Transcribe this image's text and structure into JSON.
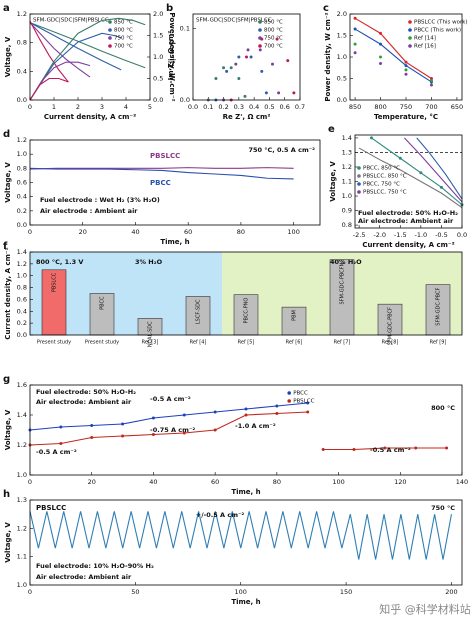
{
  "chart_data": [
    {
      "label": "a",
      "type": "line",
      "title": "SFM-GDC|SDC|SFM|PBSLCC",
      "x_label": "Current density, A cm⁻²",
      "y_label": "Voltage, V",
      "y2_label": "Power density, W cm⁻²",
      "xlim": [
        0,
        5
      ],
      "xticks": [
        0,
        1,
        2,
        3,
        4,
        5
      ],
      "ylim": [
        0,
        1.2
      ],
      "yticks": [
        {
          "value": 0,
          "label": "0.0"
        },
        {
          "value": 0.4,
          "label": "0.4"
        },
        {
          "value": 0.8,
          "label": "0.8"
        },
        {
          "value": 1.2,
          "label": "1.2"
        }
      ],
      "y2lim": [
        0,
        2
      ],
      "y2ticks": [
        {
          "value": 0,
          "label": "0.0"
        },
        {
          "value": 0.5,
          "label": "0.5"
        },
        {
          "value": 1,
          "label": "1.0"
        },
        {
          "value": 1.5,
          "label": "1.5"
        },
        {
          "value": 2,
          "label": "2.0"
        }
      ],
      "legend": "upper right",
      "series": [
        {
          "name": "850 °C",
          "color": "#3a7d6a",
          "x": [
            0,
            1,
            2,
            3,
            4,
            4.8
          ],
          "values": [
            1.08,
            0.95,
            0.82,
            0.68,
            0.55,
            0.45
          ]
        },
        {
          "name": "800 °C",
          "color": "#2f5fa8",
          "x": [
            0,
            1,
            2,
            3,
            3.8
          ],
          "values": [
            1.08,
            0.9,
            0.72,
            0.55,
            0.42
          ]
        },
        {
          "name": "750 °C",
          "color": "#7b3fa0",
          "x": [
            0,
            0.5,
            1,
            1.5,
            2,
            2.5
          ],
          "values": [
            1.08,
            0.9,
            0.72,
            0.57,
            0.44,
            0.32
          ]
        },
        {
          "name": "700 °C",
          "color": "#c2185b",
          "x": [
            0,
            0.4,
            0.8,
            1.2,
            1.6
          ],
          "values": [
            1.1,
            0.85,
            0.62,
            0.42,
            0.25
          ]
        },
        {
          "color": "#3a7d6a",
          "axis": "y2",
          "x": [
            0,
            1,
            2,
            3,
            3.7,
            4.3,
            4.8
          ],
          "values": [
            0,
            0.9,
            1.55,
            1.85,
            1.9,
            1.85,
            1.75
          ]
        },
        {
          "color": "#2f5fa8",
          "axis": "y2",
          "x": [
            0,
            1,
            2,
            3,
            3.5,
            3.8
          ],
          "values": [
            0,
            0.85,
            1.35,
            1.55,
            1.5,
            1.45
          ]
        },
        {
          "color": "#7b3fa0",
          "axis": "y2",
          "x": [
            0,
            0.5,
            1,
            1.5,
            2,
            2.5
          ],
          "values": [
            0,
            0.45,
            0.75,
            0.88,
            0.88,
            0.8
          ]
        },
        {
          "color": "#c2185b",
          "axis": "y2",
          "x": [
            0,
            0.4,
            0.8,
            1.2,
            1.6
          ],
          "values": [
            0,
            0.35,
            0.5,
            0.5,
            0.42
          ]
        }
      ]
    },
    {
      "label": "b",
      "type": "scatter",
      "title": "SFM-GDC|SDC|SFM|PBSLCC",
      "x_label": "Re Z', Ω cm²",
      "y_label": "-Im Z'', Ω cm²",
      "xlim": [
        0,
        0.7
      ],
      "xticks": [
        {
          "value": 0,
          "label": "0.0"
        },
        {
          "value": 0.1,
          "label": "0.1"
        },
        {
          "value": 0.2,
          "label": "0.2"
        },
        {
          "value": 0.3,
          "label": "0.3"
        },
        {
          "value": 0.4,
          "label": "0.4"
        },
        {
          "value": 0.5,
          "label": "0.5"
        },
        {
          "value": 0.6,
          "label": "0.6"
        },
        {
          "value": 0.7,
          "label": "0.7"
        }
      ],
      "ylim": [
        0,
        0.12
      ],
      "yticks": [
        {
          "value": 0,
          "label": "0.0"
        },
        {
          "value": 0.1,
          "label": "0.1"
        }
      ],
      "legend": "upper right",
      "series": [
        {
          "name": "850 °C",
          "color": "#3a7d6a",
          "x": [
            0.1,
            0.15,
            0.2,
            0.25,
            0.3,
            0.34
          ],
          "values": [
            0,
            0.03,
            0.045,
            0.045,
            0.03,
            0.005
          ]
        },
        {
          "name": "800 °C",
          "color": "#2f5fa8",
          "x": [
            0.15,
            0.22,
            0.3,
            0.38,
            0.45,
            0.48
          ],
          "values": [
            0,
            0.04,
            0.06,
            0.06,
            0.04,
            0.01
          ]
        },
        {
          "name": "750 °C",
          "color": "#7b3fa0",
          "x": [
            0.2,
            0.28,
            0.36,
            0.44,
            0.52,
            0.56
          ],
          "values": [
            0,
            0.05,
            0.07,
            0.07,
            0.05,
            0.01
          ]
        },
        {
          "name": "700 °C",
          "color": "#c2185b",
          "x": [
            0.25,
            0.35,
            0.45,
            0.55,
            0.62,
            0.66
          ],
          "values": [
            0,
            0.06,
            0.085,
            0.085,
            0.055,
            0.01
          ]
        }
      ]
    },
    {
      "label": "c",
      "type": "line",
      "x_label": "Temperature, °C",
      "y_label": "Power density, W cm⁻²",
      "xlim": [
        860,
        640
      ],
      "xticks": [
        850,
        800,
        750,
        700,
        650
      ],
      "ylim": [
        0,
        2
      ],
      "yticks": [
        {
          "value": 0,
          "label": "0.0"
        },
        {
          "value": 0.5,
          "label": "0.5"
        },
        {
          "value": 1,
          "label": "1.0"
        },
        {
          "value": 1.5,
          "label": "1.5"
        },
        {
          "value": 2,
          "label": "2.0"
        }
      ],
      "legend": "upper right",
      "series": [
        {
          "name": "PBSLCC (This work)",
          "color": "#d62728",
          "markers": true,
          "x": [
            850,
            800,
            750,
            700
          ],
          "values": [
            1.9,
            1.55,
            0.88,
            0.5
          ]
        },
        {
          "name": "PBCC (This work)",
          "color": "#1f4fb4",
          "markers": true,
          "x": [
            850,
            800,
            750,
            700
          ],
          "values": [
            1.65,
            1.3,
            0.8,
            0.42
          ]
        },
        {
          "name": "Ref [14]",
          "color": "#2ca02c",
          "mode": "markers",
          "x": [
            850,
            800,
            750,
            700
          ],
          "values": [
            1.3,
            1.0,
            0.7,
            0.45
          ]
        },
        {
          "name": "Ref [16]",
          "color": "#7b3fa0",
          "mode": "markers",
          "x": [
            850,
            800,
            750,
            700
          ],
          "values": [
            1.1,
            0.85,
            0.6,
            0.35
          ]
        }
      ]
    },
    {
      "label": "d",
      "type": "line",
      "x_label": "Time, h",
      "y_label": "Voltage, V",
      "xlim": [
        0,
        110
      ],
      "xticks": [
        0,
        20,
        40,
        60,
        80,
        100
      ],
      "ylim": [
        0,
        1.2
      ],
      "yticks": [
        {
          "value": 0,
          "label": "0.0"
        },
        {
          "value": 0.2,
          "label": "0.2"
        },
        {
          "value": 0.4,
          "label": "0.4"
        },
        {
          "value": 0.6,
          "label": "0.6"
        },
        {
          "value": 0.8,
          "label": "0.8"
        },
        {
          "value": 1,
          "label": "1.0"
        },
        {
          "value": 1.2,
          "label": "1.2"
        }
      ],
      "legend": "inline",
      "annotations": [
        "750 °C, 0.5 A cm⁻²",
        "Fuel electrode : Wet H₂ (3% H₂O)",
        "Air electrode : Ambient air"
      ],
      "series": [
        {
          "name": "PBSLCC",
          "color": "#8b3a8b",
          "x": [
            0,
            10,
            20,
            30,
            40,
            50,
            60,
            70,
            80,
            90,
            100
          ],
          "values": [
            0.79,
            0.8,
            0.8,
            0.8,
            0.8,
            0.8,
            0.81,
            0.8,
            0.8,
            0.81,
            0.8
          ]
        },
        {
          "name": "PBCC",
          "color": "#2a4fb0",
          "x": [
            0,
            10,
            20,
            30,
            40,
            50,
            60,
            70,
            80,
            90,
            100
          ],
          "values": [
            0.8,
            0.79,
            0.79,
            0.79,
            0.78,
            0.77,
            0.74,
            0.72,
            0.7,
            0.66,
            0.65
          ]
        }
      ]
    },
    {
      "label": "e",
      "type": "line",
      "x_label": "Current density, A cm⁻²",
      "y_label": "Voltage, V",
      "xlim": [
        -2.6,
        0
      ],
      "xticks": [
        {
          "value": -2.5,
          "label": "-2.5"
        },
        {
          "value": -2,
          "label": "-2.0"
        },
        {
          "value": -1.5,
          "label": "-1.5"
        },
        {
          "value": -1,
          "label": "-1.0"
        },
        {
          "value": -0.5,
          "label": "-0.5"
        },
        {
          "value": 0,
          "label": "0.0"
        }
      ],
      "ylim": [
        0.78,
        1.42
      ],
      "yticks": [
        0.8,
        0.9,
        {
          "value": 1,
          "label": "1.0"
        },
        1.1,
        1.2,
        1.3,
        1.4
      ],
      "hline": 1.3,
      "legend": "lower left",
      "annotations": [
        "Fuel electrode: 50% H₂O-H₂",
        "Air electrode: Ambient air"
      ],
      "series": [
        {
          "name": "PBCC, 850 °C",
          "color": "#2e8b7a",
          "markers": true,
          "x": [
            -2.2,
            -1.5,
            -1,
            -0.5,
            0
          ],
          "values": [
            1.4,
            1.26,
            1.16,
            1.06,
            0.94
          ]
        },
        {
          "name": "PBSLCC, 850 °C",
          "color": "#777777",
          "x": [
            -2.5,
            -2,
            -1.5,
            -1,
            -0.5,
            0
          ],
          "values": [
            1.33,
            1.25,
            1.18,
            1.1,
            1.02,
            0.92
          ]
        },
        {
          "name": "PBCC, 750 °C",
          "color": "#2f5fa8",
          "x": [
            -1.1,
            -0.8,
            -0.4,
            0
          ],
          "values": [
            1.4,
            1.3,
            1.15,
            0.98
          ]
        },
        {
          "name": "PBSLCC, 750 °C",
          "color": "#7b3fa0",
          "x": [
            -1.4,
            -1,
            -0.5,
            0
          ],
          "values": [
            1.4,
            1.28,
            1.12,
            0.96
          ]
        }
      ]
    },
    {
      "label": "f",
      "type": "bar",
      "y_label": "Current density, A cm⁻²",
      "ylim": [
        0,
        1.4
      ],
      "yticks": [
        {
          "value": 0,
          "label": "0.0"
        },
        {
          "value": 0.2,
          "label": "0.2"
        },
        {
          "value": 0.4,
          "label": "0.4"
        },
        {
          "value": 0.6,
          "label": "0.6"
        },
        {
          "value": 0.8,
          "label": "0.8"
        },
        {
          "value": 1,
          "label": "1.0"
        },
        {
          "value": 1.2,
          "label": "1.2"
        },
        {
          "value": 1.4,
          "label": "1.4"
        }
      ],
      "annotations": [
        "800 °C, 1.3 V",
        "3% H₂O",
        "40% H₂O"
      ],
      "categories": [
        "Present study",
        "Present study",
        "Ref [3]",
        "Ref [4]",
        "Ref [5]",
        "Ref [6]",
        "Ref [7]",
        "Ref [8]",
        "Ref [9]"
      ],
      "bar_labels": [
        "PBSLCC",
        "PBCC",
        "NCAL-SDC",
        "LSCF-SDC",
        "PBCC-PNO",
        "PBM",
        "SFM-GDC-PBCFN",
        "SFM-GDC-PBCF",
        "SFM-GDC-PBCF"
      ],
      "values": [
        1.1,
        0.7,
        0.28,
        0.65,
        0.68,
        0.47,
        1.27,
        0.52,
        0.85
      ],
      "colors": [
        "#f26b6b",
        "#bdbdbd",
        "#bdbdbd",
        "#bdbdbd",
        "#bdbdbd",
        "#bdbdbd",
        "#bdbdbd",
        "#bdbdbd",
        "#bdbdbd"
      ]
    },
    {
      "label": "g",
      "type": "line",
      "x_label": "Time, h",
      "y_label": "Voltage, V",
      "xlim": [
        0,
        140
      ],
      "xticks": [
        0,
        20,
        40,
        60,
        80,
        100,
        120,
        140
      ],
      "ylim": [
        1,
        1.6
      ],
      "yticks": [
        {
          "value": 1,
          "label": "1.0"
        },
        1.2,
        1.4,
        1.6
      ],
      "legend": "upper center",
      "annotations": [
        "Fuel electrode: 50% H₂O-H₂",
        "Air electrode: Ambient air",
        "800 °C",
        "-0.5 A cm⁻²",
        "-0.75 A cm⁻²",
        "-1.0 A cm⁻²",
        "-0.5 A cm⁻²",
        "-0.5 A cm⁻²"
      ],
      "series": [
        {
          "name": "PBCC",
          "color": "#1f3fbf",
          "markers": true,
          "x": [
            0,
            10,
            20,
            30,
            40,
            50,
            60,
            70,
            80,
            90
          ],
          "values": [
            1.3,
            1.32,
            1.33,
            1.34,
            1.38,
            1.4,
            1.42,
            1.44,
            1.46,
            1.48
          ]
        },
        {
          "name": "PBSLCC",
          "color": "#c0281e",
          "markers": true,
          "x": [
            0,
            10,
            20,
            30,
            40,
            50,
            60,
            70,
            80,
            90,
            92,
            95,
            105,
            115,
            125,
            135
          ],
          "values": [
            1.2,
            1.21,
            1.25,
            1.26,
            1.27,
            1.28,
            1.3,
            1.4,
            1.41,
            1.42,
            null,
            1.17,
            1.17,
            1.18,
            1.18,
            1.18
          ]
        }
      ]
    },
    {
      "label": "h",
      "type": "line",
      "x_label": "Time, h",
      "y_label": "Voltage, V",
      "xlim": [
        0,
        205
      ],
      "xticks": [
        0,
        50,
        100,
        150,
        200
      ],
      "ylim": [
        1,
        1.3
      ],
      "yticks": [
        {
          "value": 1,
          "label": "1.0"
        },
        1.1,
        1.2,
        1.3
      ],
      "legend": "inline",
      "annotations": [
        "750 °C",
        "+/-0.5 A cm⁻²",
        "Fuel electrode: 10% H₂O-90% H₂",
        "Air electrode: Ambient air"
      ],
      "series": [
        {
          "name": "PBSLCC",
          "color": "#2f7fb5",
          "x": [
            0,
            4,
            8,
            12,
            16,
            20,
            24,
            28,
            32,
            36,
            40,
            44,
            48,
            52,
            56,
            60,
            64,
            68,
            72,
            76,
            80,
            84,
            88,
            92,
            96,
            100,
            104,
            108,
            112,
            116,
            120,
            124,
            128,
            132,
            136,
            140,
            144,
            148,
            152,
            156,
            160,
            164,
            168,
            172,
            176,
            180,
            184,
            188,
            192,
            196,
            200
          ],
          "values": [
            1.26,
            1.13,
            1.26,
            1.13,
            1.26,
            1.13,
            1.26,
            1.13,
            1.26,
            1.13,
            1.26,
            1.13,
            1.26,
            1.13,
            1.26,
            1.13,
            1.26,
            1.13,
            1.26,
            1.13,
            1.26,
            1.13,
            1.26,
            1.13,
            1.26,
            1.13,
            1.26,
            1.13,
            1.26,
            1.13,
            1.26,
            1.13,
            1.26,
            1.13,
            1.26,
            1.13,
            1.26,
            1.13,
            1.25,
            1.09,
            1.25,
            1.09,
            1.25,
            1.09,
            1.25,
            1.09,
            1.25,
            1.09,
            1.25,
            1.09,
            1.25
          ]
        }
      ]
    }
  ],
  "watermark": "知乎 @科学材料站"
}
